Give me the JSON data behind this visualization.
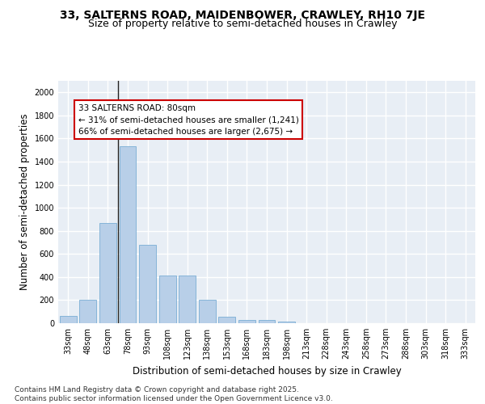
{
  "title_line1": "33, SALTERNS ROAD, MAIDENBOWER, CRAWLEY, RH10 7JE",
  "title_line2": "Size of property relative to semi-detached houses in Crawley",
  "xlabel": "Distribution of semi-detached houses by size in Crawley",
  "ylabel": "Number of semi-detached properties",
  "categories": [
    "33sqm",
    "48sqm",
    "63sqm",
    "78sqm",
    "93sqm",
    "108sqm",
    "123sqm",
    "138sqm",
    "153sqm",
    "168sqm",
    "183sqm",
    "198sqm",
    "213sqm",
    "228sqm",
    "243sqm",
    "258sqm",
    "273sqm",
    "288sqm",
    "303sqm",
    "318sqm",
    "333sqm"
  ],
  "values": [
    65,
    200,
    870,
    1530,
    680,
    415,
    415,
    200,
    55,
    25,
    25,
    15,
    0,
    0,
    0,
    0,
    0,
    0,
    0,
    0,
    0
  ],
  "bar_color": "#b8cfe8",
  "bar_edge_color": "#7aadd4",
  "vline_index": 3,
  "annotation_title": "33 SALTERNS ROAD: 80sqm",
  "annotation_line1": "← 31% of semi-detached houses are smaller (1,241)",
  "annotation_line2": "66% of semi-detached houses are larger (2,675) →",
  "annotation_box_facecolor": "#ffffff",
  "annotation_box_edgecolor": "#cc0000",
  "ylim": [
    0,
    2100
  ],
  "yticks": [
    0,
    200,
    400,
    600,
    800,
    1000,
    1200,
    1400,
    1600,
    1800,
    2000
  ],
  "bg_color": "#e8eef5",
  "grid_color": "#ffffff",
  "footer": "Contains HM Land Registry data © Crown copyright and database right 2025.\nContains public sector information licensed under the Open Government Licence v3.0.",
  "title_fontsize": 10,
  "subtitle_fontsize": 9,
  "axis_label_fontsize": 8.5,
  "tick_fontsize": 7,
  "footer_fontsize": 6.5,
  "annotation_fontsize": 7.5
}
